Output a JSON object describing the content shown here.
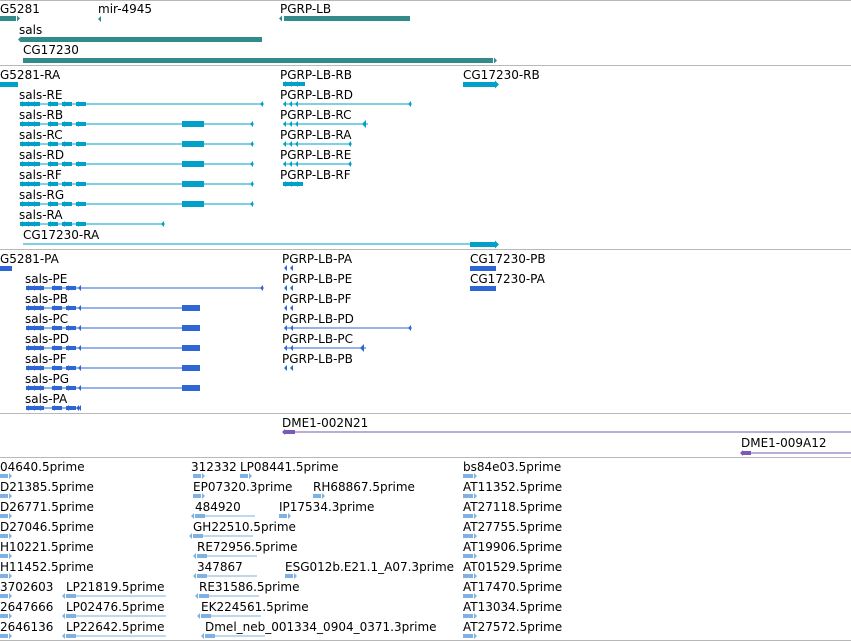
{
  "colors": {
    "gene": "#338a8a",
    "transcript": "#00a0c8",
    "protein": "#2e66d6",
    "clone": "#7a5ab4",
    "est": "#7fb2e0",
    "separator": "#b8b8b8"
  },
  "tracks": {
    "gene": {
      "labels": [
        "G5281",
        "mir-4945",
        "PGRP-LB",
        "sals",
        "CG17230"
      ]
    },
    "transcript": {
      "labels": [
        "G5281-RA",
        "PGRP-LB-RB",
        "CG17230-RB",
        "sals-RE",
        "PGRP-LB-RD",
        "sals-RB",
        "PGRP-LB-RC",
        "sals-RC",
        "PGRP-LB-RA",
        "sals-RD",
        "PGRP-LB-RE",
        "sals-RF",
        "PGRP-LB-RF",
        "sals-RG",
        "sals-RA",
        "CG17230-RA"
      ]
    },
    "protein": {
      "labels": [
        "G5281-PA",
        "PGRP-LB-PA",
        "CG17230-PB",
        "sals-PE",
        "PGRP-LB-PE",
        "CG17230-PA",
        "sals-PB",
        "PGRP-LB-PF",
        "sals-PC",
        "PGRP-LB-PD",
        "sals-PD",
        "PGRP-LB-PC",
        "sals-PF",
        "PGRP-LB-PB",
        "sals-PG",
        "sals-PA"
      ]
    },
    "clone": {
      "labels": [
        "DME1-002N21",
        "DME1-009A12"
      ]
    },
    "est": {
      "labels": [
        "04640.5prime",
        "312332",
        "LP08441.5prime",
        "bs84e03.5prime",
        "D21385.5prime",
        "EP07320.3prime",
        "RH68867.5prime",
        "AT11352.5prime",
        "D26771.5prime",
        "484920",
        "IP17534.3prime",
        "AT27118.5prime",
        "D27046.5prime",
        "GH22510.5prime",
        "AT27755.5prime",
        "H10221.5prime",
        "RE72956.5prime",
        "AT19906.5prime",
        "H11452.5prime",
        "347867",
        "ESG012b.E21.1_A07.3prime",
        "AT01529.5prime",
        "3702603",
        "LP21819.5prime",
        "RE31586.5prime",
        "AT17470.5prime",
        "2647666",
        "LP02476.5prime",
        "EK224561.5prime",
        "AT13034.5prime",
        "2646136",
        "LP22642.5prime",
        "Dmel_neb_001334_0904_0371.3prime",
        "AT27572.5prime"
      ]
    }
  }
}
